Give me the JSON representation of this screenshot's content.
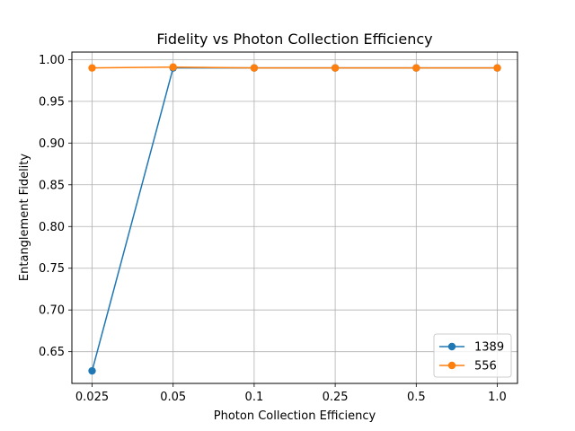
{
  "chart_data": {
    "type": "line",
    "title": "Fidelity vs Photon Collection Efficiency",
    "xlabel": "Photon Collection Efficiency",
    "ylabel": "Entanglement Fidelity",
    "categories": [
      "0.025",
      "0.05",
      "0.1",
      "0.25",
      "0.5",
      "1.0"
    ],
    "series": [
      {
        "name": "1389",
        "color": "#1f77b4",
        "values": [
          0.627,
          0.99,
          0.99,
          0.99,
          0.99,
          0.99
        ]
      },
      {
        "name": "556",
        "color": "#ff7f0e",
        "values": [
          0.99,
          0.991,
          0.99,
          0.99,
          0.99,
          0.99
        ]
      }
    ],
    "ylim": [
      0.612,
      1.009
    ],
    "yticks": [
      "0.65",
      "0.70",
      "0.75",
      "0.80",
      "0.85",
      "0.90",
      "0.95",
      "1.00"
    ],
    "grid": true,
    "legend_position": "lower-right"
  }
}
